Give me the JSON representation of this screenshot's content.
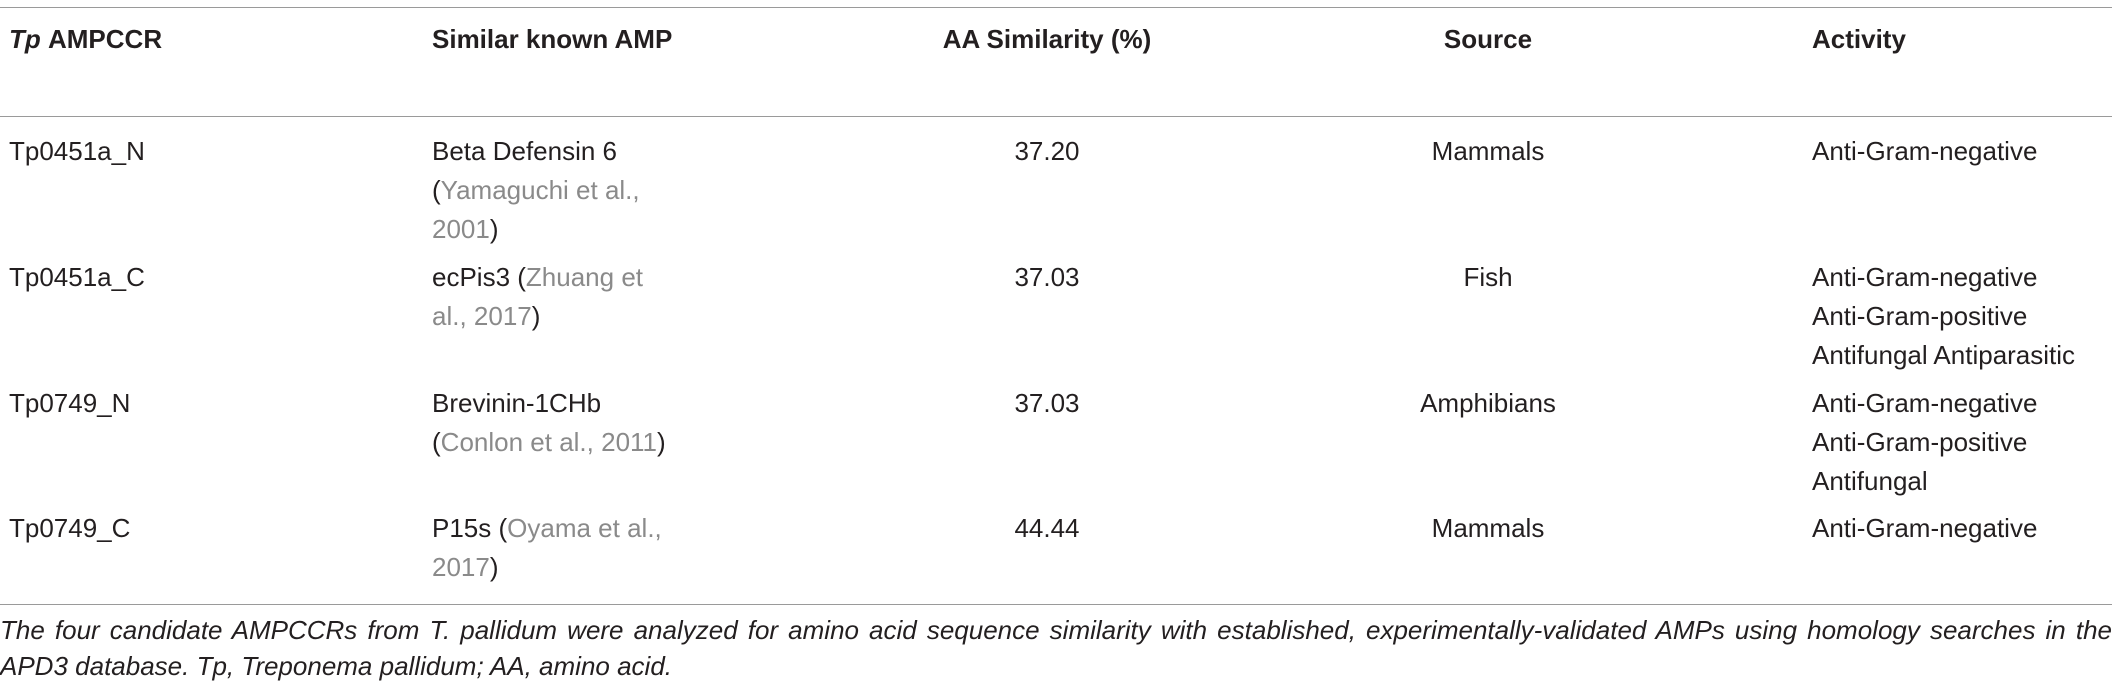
{
  "table": {
    "header": [
      {
        "italic": "Tp",
        "text": "AMPCCR"
      },
      {
        "text": "Similar known AMP"
      },
      {
        "text": "AA Similarity (%)"
      },
      {
        "text": "Source"
      },
      {
        "text": "Activity"
      }
    ],
    "rows": [
      {
        "id": "Tp0451a_N",
        "amp": [
          "Beta Defensin 6 (",
          "Yamaguchi et al., 2001",
          ")"
        ],
        "similarity": "37.20",
        "source": "Mammals",
        "activity": [
          "Anti-Gram-negative"
        ]
      },
      {
        "id": "Tp0451a_C",
        "amp": [
          "ecPis3 (",
          "Zhuang et al., 2017",
          ")"
        ],
        "similarity": "37.03",
        "source": "Fish",
        "activity": [
          "Anti-Gram-negative",
          "Anti-Gram-positive",
          "Antifungal Antiparasitic"
        ]
      },
      {
        "id": "Tp0749_N",
        "amp": [
          "Brevinin-1CHb (",
          "Conlon et al., 2011",
          ")"
        ],
        "similarity": "37.03",
        "source": "Amphibians",
        "activity": [
          "Anti-Gram-negative",
          "Anti-Gram-positive",
          "Antifungal"
        ]
      },
      {
        "id": "Tp0749_C",
        "amp": [
          "P15s (",
          "Oyama et al., 2017",
          ")"
        ],
        "similarity": "44.44",
        "source": "Mammals",
        "activity": [
          "Anti-Gram-negative"
        ]
      }
    ],
    "caption": "The four candidate AMPCCRs from T. pallidum were analyzed for amino acid sequence similarity with established, experimentally-validated AMPs using homology searches in the APD3 database. Tp, Treponema pallidum; AA, amino acid."
  }
}
